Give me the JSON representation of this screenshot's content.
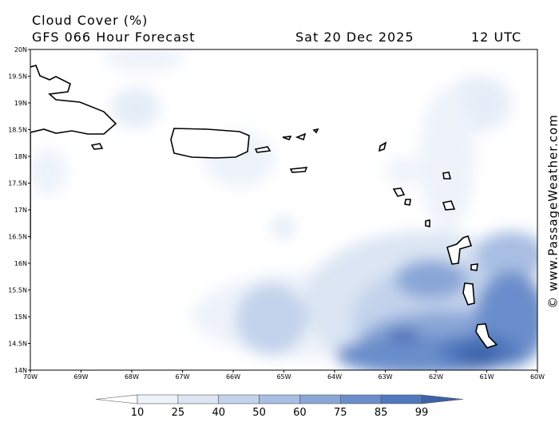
{
  "title": "Cloud Cover (%)",
  "subtitle": "GFS 066 Hour Forecast",
  "date": "Sat 20 Dec 2025",
  "time": "12 UTC",
  "credit": "© www.PassageWeather.com",
  "lon_ticks": [
    "70W",
    "69W",
    "68W",
    "67W",
    "66W",
    "65W",
    "64W",
    "63W",
    "62W",
    "61W",
    "60W"
  ],
  "lat_ticks": [
    "20N",
    "19.5N",
    "19N",
    "18.5N",
    "18N",
    "17.5N",
    "17N",
    "16.5N",
    "16N",
    "15.5N",
    "15N",
    "14.5N",
    "14N"
  ],
  "colorbar": {
    "levels": [
      "10",
      "25",
      "40",
      "50",
      "60",
      "75",
      "85",
      "99"
    ],
    "colors": [
      "#ffffff",
      "#eef3fa",
      "#dbe5f3",
      "#c3d3ec",
      "#a8bee2",
      "#89a6d7",
      "#6a8ecb",
      "#4f78bd",
      "#3d62a8"
    ]
  }
}
